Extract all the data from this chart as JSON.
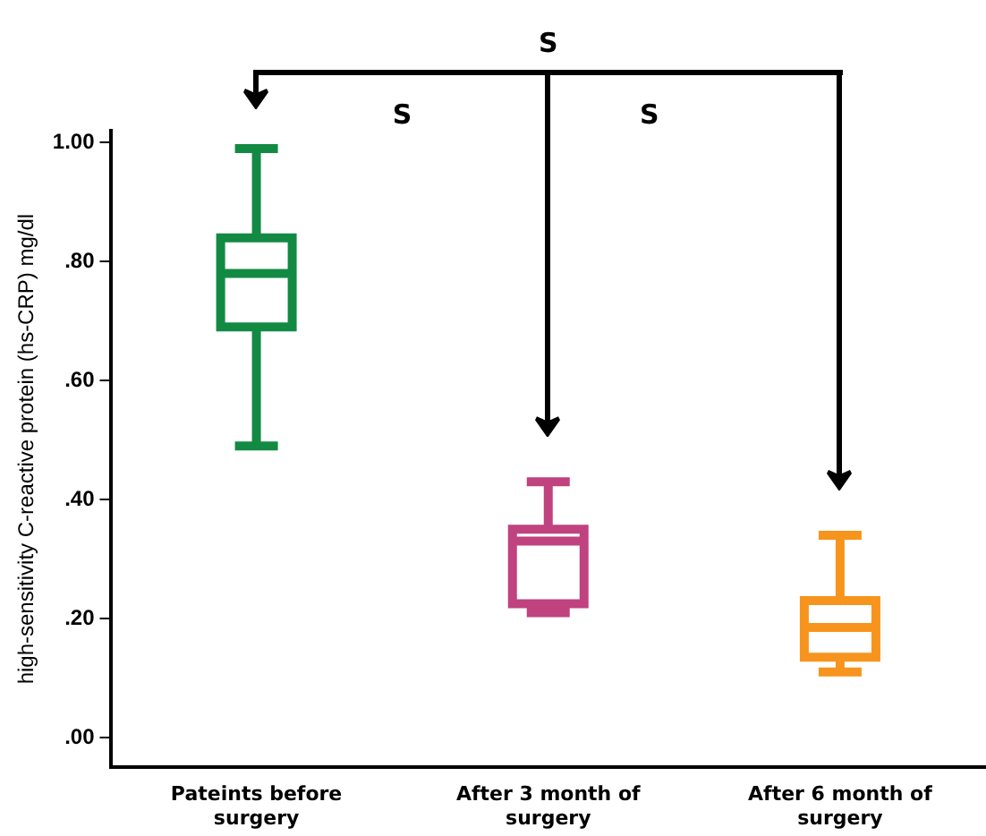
{
  "chart_data": {
    "type": "box",
    "ylabel": "high-sensitivity C-reactive protein (hs-CRP) mg/dl",
    "categories": [
      "Pateints before surgery",
      "After 3 month of surgery",
      "After 6 month of surgery"
    ],
    "colors": [
      "#138a43",
      "#c0427f",
      "#f7941d"
    ],
    "boxes": [
      {
        "low": 0.49,
        "q1": 0.69,
        "median": 0.78,
        "q3": 0.84,
        "high": 0.99
      },
      {
        "low": 0.21,
        "q1": 0.225,
        "median": 0.33,
        "q3": 0.35,
        "high": 0.43
      },
      {
        "low": 0.11,
        "q1": 0.135,
        "median": 0.185,
        "q3": 0.23,
        "high": 0.34
      }
    ],
    "ylim": [
      -0.05,
      1.02
    ],
    "yticks": [
      {
        "value": 0,
        "label": ".00"
      },
      {
        "value": 0.2,
        "label": ".20"
      },
      {
        "value": 0.4,
        "label": ".40"
      },
      {
        "value": 0.6,
        "label": ".60"
      },
      {
        "value": 0.8,
        "label": ".80"
      },
      {
        "value": 1,
        "label": "1.00"
      }
    ],
    "grid": false,
    "legend": false,
    "annotations": [
      "S",
      "S",
      "S"
    ]
  }
}
